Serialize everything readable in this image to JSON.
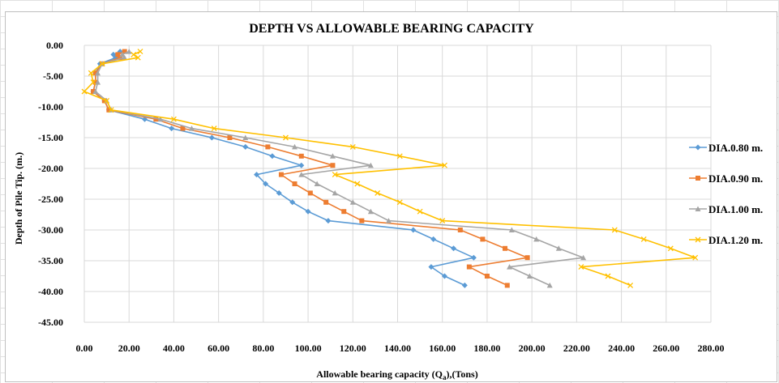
{
  "chart_data": {
    "type": "line",
    "title": "DEPTH VS ALLOWABLE BEARING CAPACITY",
    "xlabel": {
      "pre": "Allowable bearing capacity (Q",
      "sub": "a",
      "post": "),(Tons)"
    },
    "ylabel": "Depth of Pile Tip. (m.)",
    "xlim": [
      0,
      280
    ],
    "ylim": [
      -45,
      0
    ],
    "x_ticks": [
      "0.00",
      "20.00",
      "40.00",
      "60.00",
      "80.00",
      "100.00",
      "120.00",
      "140.00",
      "160.00",
      "180.00",
      "200.00",
      "220.00",
      "240.00",
      "260.00",
      "280.00"
    ],
    "y_ticks": [
      "0.00",
      "-5.00",
      "-10.00",
      "-15.00",
      "-20.00",
      "-25.00",
      "-30.00",
      "-35.00",
      "-40.00",
      "-45.00"
    ],
    "grid": true,
    "legend_position": "right",
    "depths": [
      -1.0,
      -1.5,
      -2.0,
      -3.0,
      -4.5,
      -6.0,
      -7.5,
      -9.0,
      -10.5,
      -12.0,
      -13.5,
      -15.0,
      -16.5,
      -18.0,
      -19.5,
      -21.0,
      -22.5,
      -24.0,
      -25.5,
      -27.0,
      -28.5,
      -30.0,
      -31.5,
      -33.0,
      -34.5,
      -36.0,
      -37.5,
      -39.0
    ],
    "series": [
      {
        "name": "DIA.0.80 m.",
        "color": "#5B9BD5",
        "marker": "diamond",
        "values": [
          16,
          13,
          14,
          7,
          5,
          5,
          4,
          9,
          11,
          27,
          39,
          57,
          72,
          84,
          97,
          77,
          81,
          87,
          93,
          100,
          109,
          147,
          156,
          165,
          174,
          155,
          161,
          170
        ]
      },
      {
        "name": "DIA.0.90 m.",
        "color": "#ED7D31",
        "marker": "square",
        "values": [
          18,
          15,
          16,
          8,
          5,
          5,
          4,
          9,
          11,
          32,
          44,
          65,
          82,
          97,
          111,
          88,
          94,
          101,
          108,
          116,
          124,
          168,
          178,
          188,
          198,
          172,
          180,
          189
        ]
      },
      {
        "name": "DIA.1.00 m.",
        "color": "#A5A5A5",
        "marker": "triangle",
        "values": [
          20,
          17,
          18,
          8,
          6,
          6,
          5,
          10,
          12,
          34,
          48,
          72,
          94,
          111,
          128,
          97,
          104,
          112,
          120,
          128,
          136,
          191,
          202,
          212,
          223,
          190,
          199,
          208
        ]
      },
      {
        "name": "DIA.1.20 m.",
        "color": "#FFC000",
        "marker": "x",
        "values": [
          25,
          22,
          24,
          8,
          3,
          4,
          0,
          10,
          12,
          40,
          58,
          90,
          120,
          141,
          161,
          112,
          122,
          131,
          141,
          150,
          160,
          237,
          250,
          262,
          273,
          222,
          234,
          244
        ]
      }
    ]
  }
}
